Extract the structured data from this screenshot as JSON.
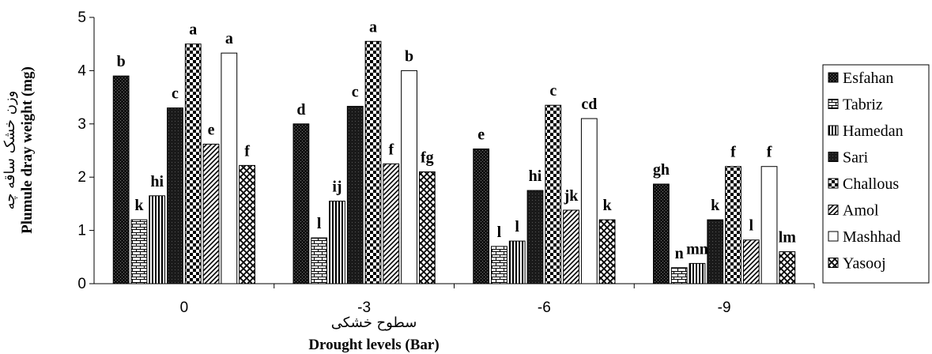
{
  "chart_data": {
    "type": "bar",
    "categories": [
      "0",
      "-3",
      "-6",
      "-9"
    ],
    "series": [
      {
        "name": "Esfahan",
        "values": [
          3.9,
          3.0,
          2.53,
          1.87
        ],
        "letters": [
          "b",
          "d",
          "e",
          "gh"
        ]
      },
      {
        "name": "Tabriz",
        "values": [
          1.2,
          0.86,
          0.7,
          0.3
        ],
        "letters": [
          "k",
          "l",
          "l",
          "n"
        ]
      },
      {
        "name": "Hamedan",
        "values": [
          1.65,
          1.55,
          0.8,
          0.38
        ],
        "letters": [
          "hi",
          "ij",
          "l",
          "mn"
        ]
      },
      {
        "name": "Sari",
        "values": [
          3.3,
          3.33,
          1.75,
          1.2
        ],
        "letters": [
          "c",
          "c",
          "hi",
          "k"
        ]
      },
      {
        "name": "Challous",
        "values": [
          4.5,
          4.55,
          3.35,
          2.2
        ],
        "letters": [
          "a",
          "a",
          "c",
          "f"
        ]
      },
      {
        "name": "Amol",
        "values": [
          2.62,
          2.25,
          1.38,
          0.82
        ],
        "letters": [
          "e",
          "f",
          "jk",
          "l"
        ]
      },
      {
        "name": "Mashhad",
        "values": [
          4.33,
          4.0,
          3.1,
          2.2
        ],
        "letters": [
          "a",
          "b",
          "cd",
          "f"
        ]
      },
      {
        "name": "Yasooj",
        "values": [
          2.22,
          2.1,
          1.2,
          0.6
        ],
        "letters": [
          "f",
          "fg",
          "k",
          "lm"
        ]
      }
    ],
    "ylim": [
      0,
      5
    ],
    "yticks": [
      "0",
      "1",
      "2",
      "3",
      "4",
      "5"
    ],
    "ylabel": "Plumule dray weight (mg)",
    "ylabel_fa": "وزن خشک ساقه چه",
    "xlabel": "Drought levels (Bar)",
    "xlabel_fa": "سطوح خشکی",
    "legend_position": "right",
    "grid": false
  }
}
